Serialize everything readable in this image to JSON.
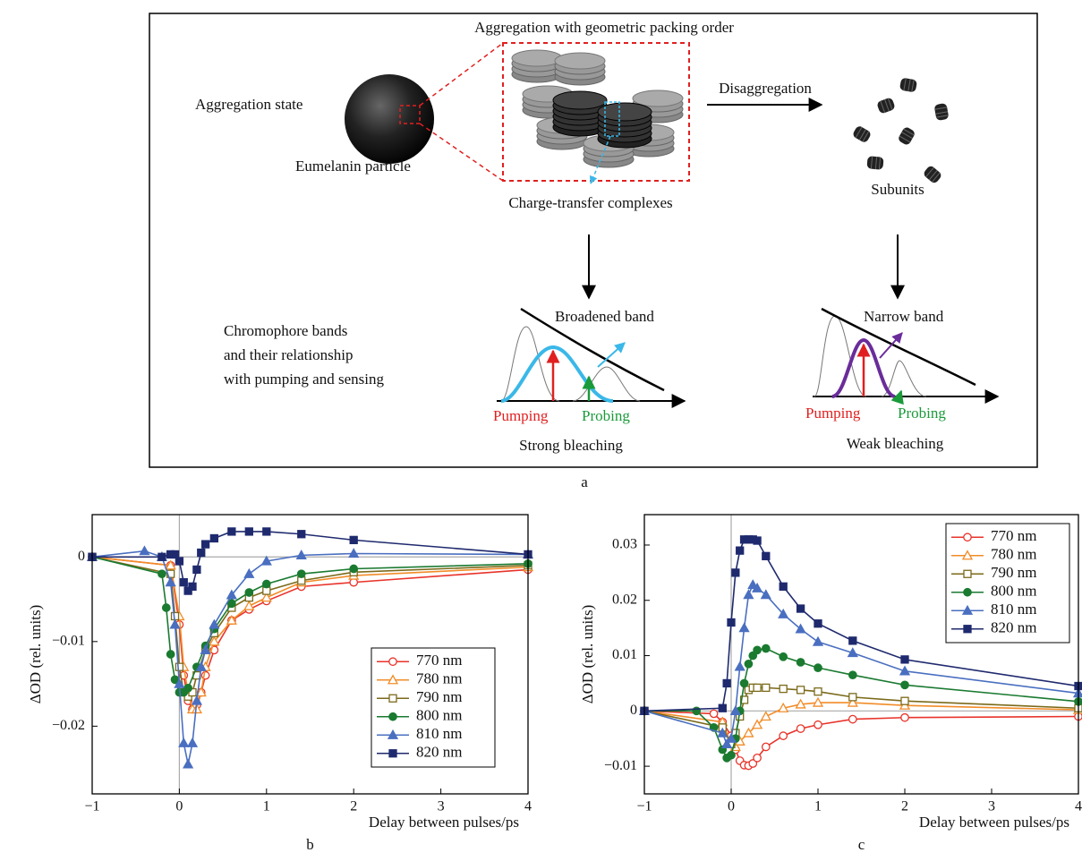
{
  "diagram": {
    "title": "Aggregation with geometric packing order",
    "aggregation_state": "Aggregation state",
    "particle": "Eumelanin particle",
    "complexes": "Charge-transfer complexes",
    "disaggregation": "Disaggregation",
    "subunits": "Subunits",
    "bands_text": [
      "Chromophore bands",
      "and their relationship",
      "with pumping and sensing"
    ],
    "left_band": {
      "band": "Broadened band",
      "pumping": "Pumping",
      "probing": "Probing",
      "result": "Strong bleaching"
    },
    "right_band": {
      "band": "Narrow band",
      "pumping": "Pumping",
      "probing": "Probing",
      "result": "Weak bleaching"
    },
    "panel_label": "a"
  },
  "chart_data": [
    {
      "type": "line",
      "panel_label": "b",
      "xlabel": "Delay between pulses/ps",
      "ylabel": "ΔOD (rel. units)",
      "xlim": [
        -1,
        4
      ],
      "ylim": [
        -0.028,
        0.005
      ],
      "xticks": [
        {
          "value": -1,
          "label": "−1"
        },
        0,
        1,
        2,
        3,
        4
      ],
      "yticks": [
        {
          "value": -0.02,
          "label": "−0.02"
        },
        {
          "value": -0.01,
          "label": "−0.01"
        },
        0
      ],
      "zero_lines": true,
      "legend": "lower right",
      "series": [
        {
          "name": "770 nm",
          "color": "#e8332a",
          "marker": "circle-open",
          "x": [
            -1,
            -0.1,
            0,
            0.05,
            0.1,
            0.15,
            0.2,
            0.25,
            0.3,
            0.4,
            0.6,
            0.8,
            1,
            1.4,
            2,
            4
          ],
          "values": [
            0,
            -0.001,
            -0.008,
            -0.014,
            -0.017,
            -0.018,
            -0.0175,
            -0.016,
            -0.014,
            -0.011,
            -0.0075,
            -0.0062,
            -0.0052,
            -0.0035,
            -0.003,
            -0.0015
          ]
        },
        {
          "name": "780 nm",
          "color": "#f28c28",
          "marker": "triangle-open",
          "x": [
            -1,
            -0.1,
            0,
            0.05,
            0.1,
            0.15,
            0.2,
            0.25,
            0.3,
            0.4,
            0.6,
            0.8,
            1,
            1.4,
            2,
            4
          ],
          "values": [
            0,
            -0.001,
            -0.007,
            -0.013,
            -0.016,
            -0.018,
            -0.018,
            -0.016,
            -0.013,
            -0.01,
            -0.0075,
            -0.0058,
            -0.0048,
            -0.003,
            -0.0022,
            -0.0012
          ]
        },
        {
          "name": "790 nm",
          "color": "#7b6a1a",
          "marker": "square-open",
          "x": [
            -1,
            -0.1,
            -0.05,
            0,
            0.05,
            0.1,
            0.15,
            0.2,
            0.3,
            0.4,
            0.6,
            0.8,
            1,
            1.4,
            2,
            4
          ],
          "values": [
            0,
            -0.002,
            -0.007,
            -0.013,
            -0.016,
            -0.0165,
            -0.016,
            -0.014,
            -0.011,
            -0.009,
            -0.006,
            -0.0048,
            -0.004,
            -0.0028,
            -0.0018,
            -0.001
          ]
        },
        {
          "name": "800 nm",
          "color": "#1a7a30",
          "marker": "circle",
          "x": [
            -1,
            -0.2,
            -0.15,
            -0.1,
            -0.05,
            0,
            0.05,
            0.1,
            0.2,
            0.3,
            0.4,
            0.6,
            0.8,
            1,
            1.4,
            2,
            4
          ],
          "values": [
            0,
            -0.002,
            -0.006,
            -0.0115,
            -0.0145,
            -0.016,
            -0.016,
            -0.0155,
            -0.013,
            -0.0105,
            -0.0085,
            -0.0055,
            -0.0042,
            -0.0032,
            -0.002,
            -0.0014,
            -0.0008
          ]
        },
        {
          "name": "810 nm",
          "color": "#4a6fc0",
          "marker": "triangle",
          "x": [
            -1,
            -0.4,
            -0.2,
            -0.1,
            -0.05,
            0,
            0.05,
            0.1,
            0.15,
            0.2,
            0.25,
            0.3,
            0.4,
            0.6,
            0.8,
            1,
            1.4,
            2,
            4
          ],
          "values": [
            0,
            0.0007,
            0,
            -0.003,
            -0.008,
            -0.015,
            -0.022,
            -0.0245,
            -0.022,
            -0.017,
            -0.013,
            -0.011,
            -0.008,
            -0.0045,
            -0.002,
            -0.0005,
            0.0002,
            0.0004,
            0.0003
          ]
        },
        {
          "name": "820 nm",
          "color": "#1f2a6e",
          "marker": "square",
          "x": [
            -1,
            -0.2,
            -0.1,
            -0.05,
            0,
            0.05,
            0.1,
            0.15,
            0.2,
            0.25,
            0.3,
            0.4,
            0.6,
            0.8,
            1,
            1.4,
            2,
            4
          ],
          "values": [
            0,
            0,
            0.0003,
            0.0003,
            -0.0005,
            -0.003,
            -0.004,
            -0.0035,
            -0.0015,
            0.0005,
            0.0015,
            0.0022,
            0.003,
            0.003,
            0.003,
            0.0027,
            0.002,
            0.0003
          ]
        }
      ]
    },
    {
      "type": "line",
      "panel_label": "c",
      "xlabel": "Delay between pulses/ps",
      "ylabel": "ΔOD (rel. units)",
      "xlim": [
        -1,
        4
      ],
      "ylim": [
        -0.015,
        0.0355
      ],
      "xticks": [
        {
          "value": -1,
          "label": "−1"
        },
        0,
        1,
        2,
        3,
        4
      ],
      "yticks": [
        {
          "value": -0.01,
          "label": "−0.01"
        },
        0,
        0.01,
        0.02,
        0.03
      ],
      "zero_lines": true,
      "legend": "upper right",
      "series": [
        {
          "name": "770 nm",
          "color": "#e8332a",
          "marker": "circle-open",
          "x": [
            -1,
            -0.2,
            -0.1,
            0,
            0.05,
            0.1,
            0.15,
            0.2,
            0.25,
            0.3,
            0.4,
            0.6,
            0.8,
            1,
            1.4,
            2,
            4
          ],
          "values": [
            0,
            -0.0005,
            -0.002,
            -0.0045,
            -0.007,
            -0.009,
            -0.0098,
            -0.0099,
            -0.0095,
            -0.0085,
            -0.0065,
            -0.0045,
            -0.0032,
            -0.0025,
            -0.0015,
            -0.0012,
            -0.001
          ]
        },
        {
          "name": "780 nm",
          "color": "#f28c28",
          "marker": "triangle-open",
          "x": [
            -1,
            -0.1,
            0,
            0.05,
            0.1,
            0.2,
            0.3,
            0.4,
            0.6,
            0.8,
            1,
            1.4,
            2,
            4
          ],
          "values": [
            0,
            -0.002,
            -0.006,
            -0.0065,
            -0.0055,
            -0.004,
            -0.0025,
            -0.001,
            0.0005,
            0.0012,
            0.0015,
            0.0015,
            0.001,
            0.0002
          ]
        },
        {
          "name": "790 nm",
          "color": "#7b6a1a",
          "marker": "square-open",
          "x": [
            -1,
            -0.1,
            0,
            0.05,
            0.1,
            0.15,
            0.2,
            0.25,
            0.3,
            0.4,
            0.6,
            0.8,
            1,
            1.4,
            2,
            4
          ],
          "values": [
            0,
            -0.003,
            -0.006,
            -0.004,
            -0.001,
            0.002,
            0.0038,
            0.0042,
            0.0042,
            0.0042,
            0.004,
            0.0038,
            0.0035,
            0.0025,
            0.0018,
            0.0005
          ]
        },
        {
          "name": "800 nm",
          "color": "#1a7a30",
          "marker": "circle",
          "x": [
            -1,
            -0.4,
            -0.2,
            -0.1,
            -0.05,
            0,
            0.05,
            0.1,
            0.15,
            0.2,
            0.25,
            0.3,
            0.4,
            0.6,
            0.8,
            1,
            1.4,
            2,
            4
          ],
          "values": [
            0,
            0,
            -0.003,
            -0.007,
            -0.0085,
            -0.008,
            -0.005,
            0,
            0.005,
            0.0085,
            0.01,
            0.011,
            0.0113,
            0.0098,
            0.0088,
            0.0078,
            0.0065,
            0.0047,
            0.0017
          ]
        },
        {
          "name": "810 nm",
          "color": "#4a6fc0",
          "marker": "triangle",
          "x": [
            -1,
            -0.1,
            -0.05,
            0,
            0.05,
            0.1,
            0.15,
            0.2,
            0.25,
            0.3,
            0.4,
            0.6,
            0.8,
            1,
            1.4,
            2,
            4
          ],
          "values": [
            0,
            -0.004,
            -0.006,
            -0.005,
            0,
            0.008,
            0.015,
            0.021,
            0.0228,
            0.0222,
            0.021,
            0.0175,
            0.0148,
            0.0125,
            0.0105,
            0.0072,
            0.0032
          ]
        },
        {
          "name": "820 nm",
          "color": "#1f2a6e",
          "marker": "square",
          "x": [
            -1,
            -0.1,
            -0.05,
            0,
            0.05,
            0.1,
            0.15,
            0.2,
            0.25,
            0.3,
            0.4,
            0.6,
            0.8,
            1,
            1.4,
            2,
            4
          ],
          "values": [
            0,
            0.0005,
            0.005,
            0.016,
            0.025,
            0.029,
            0.031,
            0.031,
            0.031,
            0.0308,
            0.028,
            0.0225,
            0.0185,
            0.0158,
            0.0127,
            0.0093,
            0.0045
          ]
        }
      ]
    }
  ]
}
